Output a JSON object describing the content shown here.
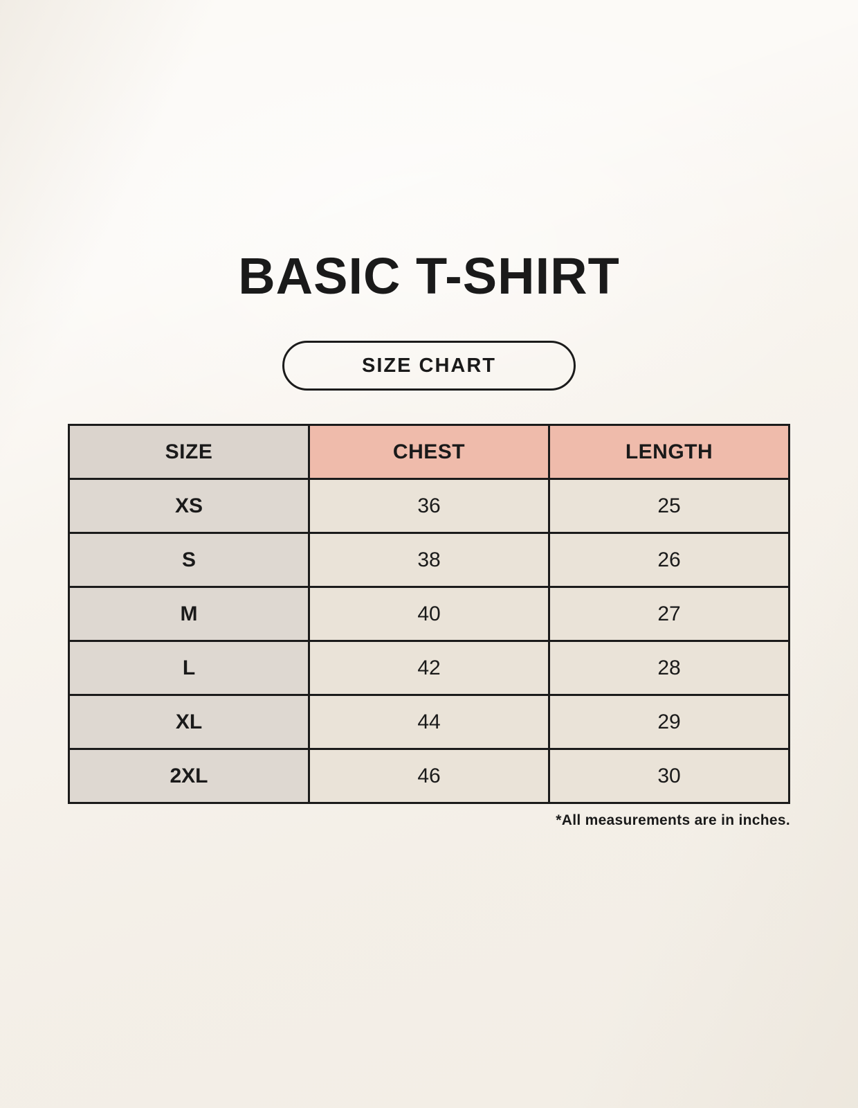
{
  "header": {
    "title": "BASIC T-SHIRT",
    "badge_label": "SIZE CHART"
  },
  "chart_data": {
    "type": "table",
    "title": "BASIC T-SHIRT",
    "subtitle": "SIZE CHART",
    "columns": [
      "SIZE",
      "CHEST",
      "LENGTH"
    ],
    "rows": [
      {
        "size": "XS",
        "chest": "36",
        "length": "25"
      },
      {
        "size": "S",
        "chest": "38",
        "length": "26"
      },
      {
        "size": "M",
        "chest": "40",
        "length": "27"
      },
      {
        "size": "L",
        "chest": "42",
        "length": "28"
      },
      {
        "size": "XL",
        "chest": "44",
        "length": "29"
      },
      {
        "size": "2XL",
        "chest": "46",
        "length": "30"
      }
    ],
    "note": "*All measurements are in inches."
  },
  "colors": {
    "background": "#F8F4EE",
    "header_accent_pink": "#EFBBAB",
    "header_gray": "#DBD4CD",
    "size_column_gray": "#DED8D1",
    "data_cell_cream": "#EAE3D8",
    "border_black": "#1B1B1B",
    "text_black": "#1A1A1A"
  }
}
